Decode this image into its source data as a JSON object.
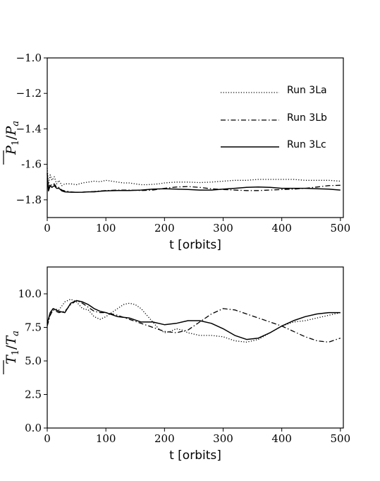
{
  "chart_data": [
    {
      "type": "line",
      "xlabel": "t [orbits]",
      "ylabel_main": "P",
      "ylabel_sub1": "1",
      "ylabel_div": "/",
      "ylabel_main2": "P",
      "ylabel_sub2": "a",
      "xlim": [
        0,
        505
      ],
      "ylim": [
        -1.9,
        -1.0
      ],
      "xticks": [
        0,
        100,
        200,
        300,
        400,
        500
      ],
      "xtick_labels": [
        "0",
        "100",
        "200",
        "300",
        "400",
        "500"
      ],
      "yticks": [
        -1.0,
        -1.2,
        -1.4,
        -1.6,
        -1.8
      ],
      "ytick_labels": [
        "−1.0",
        "−1.2",
        "−1.4",
        "-1.6",
        "−1.8"
      ],
      "legend": "top-right",
      "grid": false,
      "series": [
        {
          "name": "Run 3La",
          "style": "dotted",
          "x": [
            0,
            2,
            5,
            8,
            12,
            16,
            20,
            25,
            30,
            40,
            50,
            60,
            70,
            80,
            90,
            100,
            110,
            120,
            130,
            140,
            150,
            160,
            170,
            180,
            190,
            200,
            220,
            240,
            260,
            280,
            300,
            320,
            340,
            360,
            380,
            400,
            420,
            440,
            460,
            480,
            500
          ],
          "y": [
            -1.62,
            -1.72,
            -1.66,
            -1.69,
            -1.67,
            -1.71,
            -1.69,
            -1.72,
            -1.71,
            -1.71,
            -1.715,
            -1.705,
            -1.7,
            -1.695,
            -1.698,
            -1.69,
            -1.695,
            -1.7,
            -1.705,
            -1.705,
            -1.71,
            -1.715,
            -1.715,
            -1.713,
            -1.71,
            -1.705,
            -1.7,
            -1.7,
            -1.703,
            -1.7,
            -1.695,
            -1.69,
            -1.69,
            -1.685,
            -1.685,
            -1.685,
            -1.685,
            -1.69,
            -1.69,
            -1.69,
            -1.695
          ]
        },
        {
          "name": "Run 3Lb",
          "style": "dashdot",
          "x": [
            0,
            2,
            5,
            8,
            12,
            16,
            20,
            25,
            30,
            40,
            50,
            60,
            70,
            80,
            90,
            100,
            120,
            140,
            160,
            180,
            200,
            220,
            240,
            260,
            280,
            300,
            320,
            340,
            360,
            380,
            400,
            420,
            440,
            460,
            480,
            500
          ],
          "y": [
            -1.68,
            -1.74,
            -1.71,
            -1.72,
            -1.71,
            -1.73,
            -1.73,
            -1.745,
            -1.75,
            -1.755,
            -1.758,
            -1.757,
            -1.755,
            -1.753,
            -1.75,
            -1.748,
            -1.745,
            -1.745,
            -1.748,
            -1.745,
            -1.735,
            -1.728,
            -1.725,
            -1.73,
            -1.738,
            -1.742,
            -1.745,
            -1.748,
            -1.748,
            -1.745,
            -1.742,
            -1.74,
            -1.735,
            -1.728,
            -1.72,
            -1.718
          ]
        },
        {
          "name": "Run 3Lc",
          "style": "solid",
          "x": [
            0,
            2,
            5,
            8,
            12,
            16,
            20,
            25,
            30,
            40,
            50,
            60,
            70,
            80,
            90,
            100,
            120,
            140,
            160,
            180,
            200,
            220,
            240,
            260,
            280,
            300,
            320,
            340,
            360,
            380,
            400,
            420,
            440,
            460,
            480,
            500
          ],
          "y": [
            -1.65,
            -1.75,
            -1.72,
            -1.73,
            -1.72,
            -1.735,
            -1.735,
            -1.75,
            -1.755,
            -1.757,
            -1.758,
            -1.757,
            -1.755,
            -1.755,
            -1.752,
            -1.75,
            -1.748,
            -1.748,
            -1.745,
            -1.74,
            -1.738,
            -1.74,
            -1.742,
            -1.745,
            -1.745,
            -1.74,
            -1.735,
            -1.73,
            -1.728,
            -1.73,
            -1.735,
            -1.735,
            -1.735,
            -1.738,
            -1.74,
            -1.745
          ]
        }
      ]
    },
    {
      "type": "line",
      "xlabel": "t [orbits]",
      "ylabel_main": "T",
      "ylabel_sub1": "1",
      "ylabel_div": "/",
      "ylabel_main2": "T",
      "ylabel_sub2": "a",
      "xlim": [
        0,
        505
      ],
      "ylim": [
        0.0,
        12.0
      ],
      "xticks": [
        0,
        100,
        200,
        300,
        400,
        500
      ],
      "xtick_labels": [
        "0",
        "100",
        "200",
        "300",
        "400",
        "500"
      ],
      "yticks": [
        0.0,
        2.5,
        5.0,
        7.5,
        10.0
      ],
      "ytick_labels": [
        "0.0",
        "2.5",
        "5.0",
        "7.5",
        "10.0"
      ],
      "grid": false,
      "series": [
        {
          "name": "Run 3La",
          "style": "dotted",
          "x": [
            0,
            5,
            10,
            20,
            30,
            40,
            50,
            60,
            70,
            80,
            90,
            100,
            110,
            120,
            130,
            140,
            150,
            160,
            170,
            180,
            190,
            200,
            210,
            220,
            230,
            240,
            260,
            280,
            300,
            320,
            340,
            360,
            380,
            400,
            420,
            440,
            460,
            480,
            500
          ],
          "y": [
            7.7,
            8.5,
            8.9,
            8.8,
            9.4,
            9.6,
            9.4,
            8.9,
            8.8,
            8.3,
            8.1,
            8.3,
            8.6,
            8.9,
            9.2,
            9.3,
            9.2,
            8.9,
            8.4,
            7.9,
            7.4,
            7.1,
            7.2,
            7.4,
            7.3,
            7.1,
            6.9,
            6.9,
            6.8,
            6.5,
            6.4,
            6.6,
            7.1,
            7.6,
            7.9,
            8.0,
            8.2,
            8.4,
            8.6
          ]
        },
        {
          "name": "Run 3Lb",
          "style": "dashdot",
          "x": [
            0,
            5,
            10,
            20,
            30,
            40,
            50,
            60,
            70,
            80,
            90,
            100,
            120,
            140,
            160,
            180,
            200,
            220,
            240,
            260,
            280,
            300,
            320,
            340,
            360,
            380,
            400,
            420,
            440,
            460,
            480,
            500
          ],
          "y": [
            7.6,
            8.4,
            8.8,
            8.6,
            8.7,
            9.2,
            9.5,
            9.3,
            9.0,
            8.7,
            8.6,
            8.6,
            8.4,
            8.1,
            7.8,
            7.5,
            7.2,
            7.1,
            7.3,
            7.9,
            8.5,
            8.9,
            8.8,
            8.5,
            8.2,
            7.9,
            7.6,
            7.2,
            6.8,
            6.5,
            6.4,
            6.7
          ]
        },
        {
          "name": "Run 3Lc",
          "style": "solid",
          "x": [
            0,
            5,
            10,
            20,
            30,
            40,
            50,
            60,
            70,
            80,
            90,
            100,
            120,
            140,
            160,
            180,
            200,
            220,
            240,
            260,
            280,
            300,
            320,
            340,
            360,
            380,
            400,
            420,
            440,
            460,
            480,
            500
          ],
          "y": [
            7.8,
            8.6,
            8.9,
            8.7,
            8.6,
            9.3,
            9.5,
            9.4,
            9.2,
            8.9,
            8.7,
            8.6,
            8.3,
            8.2,
            7.9,
            7.9,
            7.7,
            7.8,
            8.0,
            8.0,
            7.8,
            7.4,
            6.9,
            6.6,
            6.7,
            7.1,
            7.6,
            8.0,
            8.3,
            8.5,
            8.6,
            8.6
          ]
        }
      ]
    }
  ]
}
